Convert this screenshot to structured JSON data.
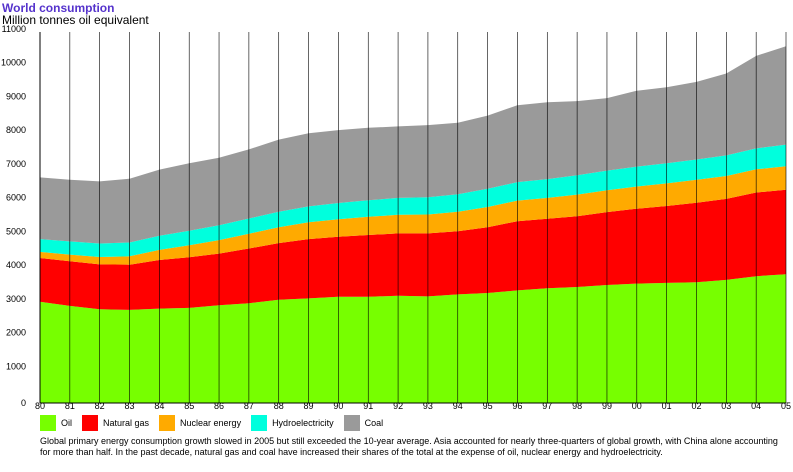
{
  "chart_data": {
    "type": "area",
    "stacked": true,
    "title": "World consumption",
    "ylabel": "Million tonnes oil equivalent",
    "ylim": [
      0,
      11000
    ],
    "yticks": [
      0,
      1000,
      2000,
      3000,
      4000,
      5000,
      6000,
      7000,
      8000,
      9000,
      10000,
      11000
    ],
    "categories": [
      "80",
      "81",
      "82",
      "83",
      "84",
      "85",
      "86",
      "87",
      "88",
      "89",
      "90",
      "91",
      "92",
      "93",
      "94",
      "95",
      "96",
      "97",
      "98",
      "99",
      "00",
      "01",
      "02",
      "03",
      "04",
      "05"
    ],
    "series": [
      {
        "name": "Oil",
        "color": "#77ff00",
        "values": [
          3000,
          2880,
          2780,
          2760,
          2800,
          2820,
          2900,
          2960,
          3060,
          3100,
          3150,
          3150,
          3180,
          3160,
          3220,
          3260,
          3340,
          3400,
          3440,
          3500,
          3540,
          3560,
          3580,
          3650,
          3760,
          3820
        ]
      },
      {
        "name": "Natural gas",
        "color": "#ff0000",
        "values": [
          1300,
          1320,
          1330,
          1340,
          1440,
          1500,
          1530,
          1620,
          1680,
          1760,
          1780,
          1830,
          1850,
          1870,
          1870,
          1950,
          2050,
          2060,
          2100,
          2160,
          2220,
          2280,
          2360,
          2400,
          2480,
          2500
        ]
      },
      {
        "name": "Nuclear energy",
        "color": "#ffaa00",
        "values": [
          180,
          200,
          220,
          250,
          300,
          360,
          400,
          440,
          470,
          500,
          520,
          540,
          550,
          560,
          580,
          600,
          610,
          620,
          640,
          650,
          660,
          670,
          680,
          680,
          690,
          700
        ]
      },
      {
        "name": "Hydroelectricity",
        "color": "#00ffdd",
        "values": [
          380,
          390,
          400,
          410,
          420,
          430,
          440,
          450,
          460,
          470,
          480,
          490,
          500,
          510,
          520,
          540,
          550,
          560,
          570,
          580,
          590,
          600,
          600,
          610,
          620,
          640
        ]
      },
      {
        "name": "Coal",
        "color": "#9a9a9a",
        "values": [
          1830,
          1830,
          1840,
          1890,
          1960,
          2000,
          2000,
          2050,
          2140,
          2170,
          2160,
          2150,
          2120,
          2140,
          2120,
          2170,
          2280,
          2280,
          2200,
          2150,
          2250,
          2250,
          2300,
          2430,
          2740,
          2920
        ]
      }
    ]
  },
  "caption": "Global primary energy consumption growth slowed in 2005 but still exceeded the 10-year average. Asia accounted for nearly three-quarters of global growth, with China alone accounting for more than half. In the past decade, natural gas and coal have increased their shares of the total at the expense of oil, nuclear energy and hydroelectricity."
}
